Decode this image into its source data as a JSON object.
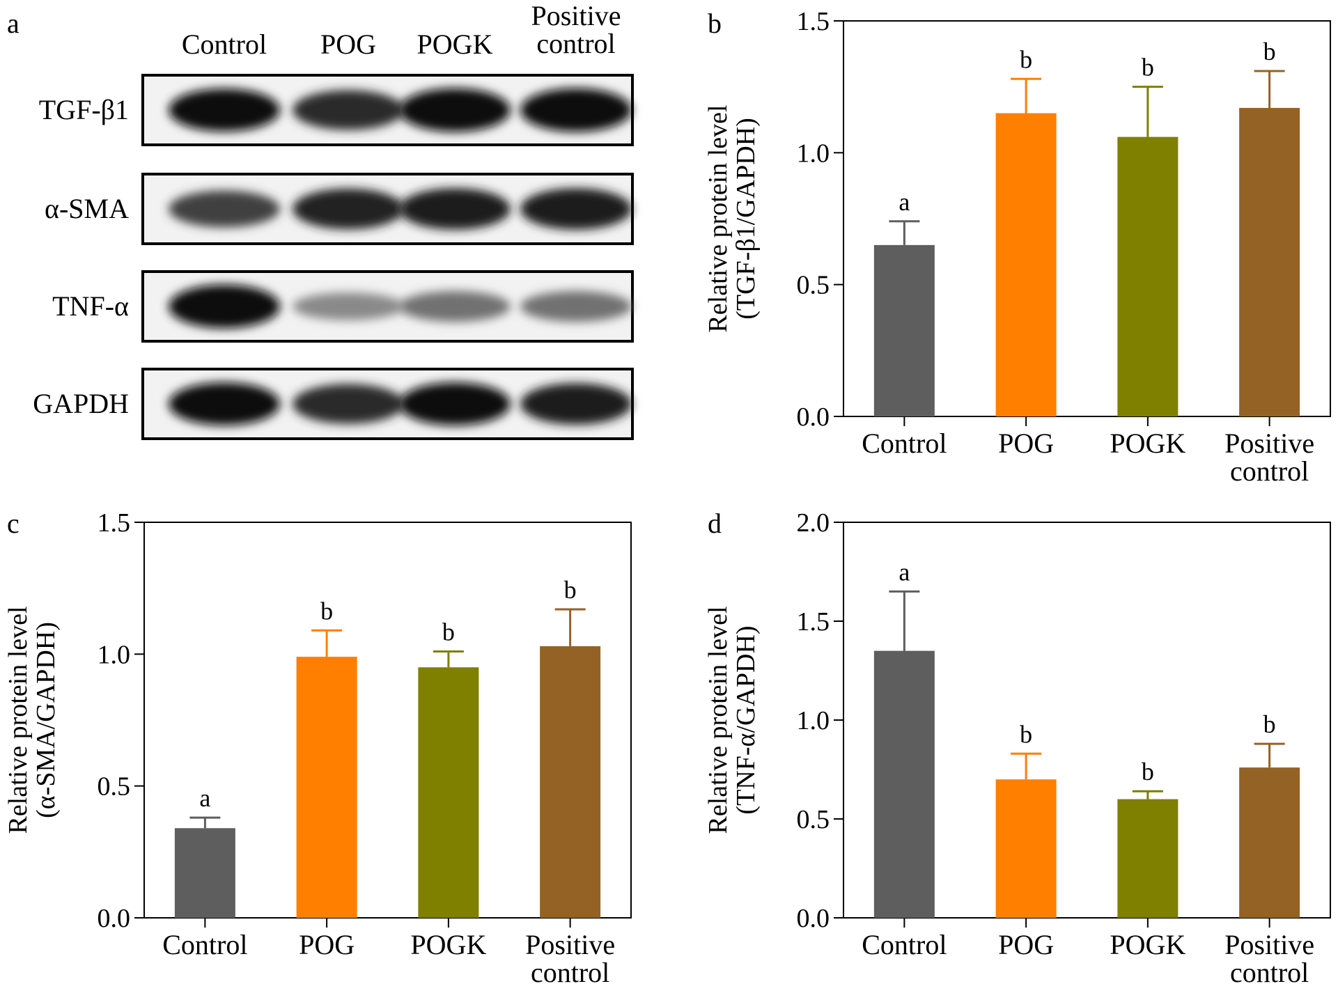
{
  "western_blot": {
    "panel_letter": "a",
    "lane_labels": [
      "Control",
      "POG",
      "POGK",
      "Positive control"
    ],
    "bands": [
      {
        "label": "TGF-β1",
        "intensity": [
          0.95,
          0.85,
          0.97,
          0.97
        ]
      },
      {
        "label": "α-SMA",
        "intensity": [
          0.75,
          0.88,
          0.9,
          0.9
        ]
      },
      {
        "label": "TNF-α",
        "intensity": [
          0.97,
          0.45,
          0.55,
          0.55
        ]
      },
      {
        "label": "GAPDH",
        "intensity": [
          0.95,
          0.85,
          0.95,
          0.9
        ]
      }
    ]
  },
  "colors": {
    "Control": "#5e5e5e",
    "POG": "#ff7f00",
    "POGK": "#7f7f00",
    "Positive control": "#946225"
  },
  "chart_data": [
    {
      "panel": "b",
      "type": "bar",
      "categories": [
        "Control",
        "POG",
        "POGK",
        "Positive control"
      ],
      "values": [
        0.65,
        1.15,
        1.06,
        1.17
      ],
      "errors": [
        0.09,
        0.13,
        0.19,
        0.14
      ],
      "significance": [
        "a",
        "b",
        "b",
        "b"
      ],
      "ylabel_lines": [
        "Relative protein level",
        "(TGF-β1/GAPDH)"
      ],
      "ylim": [
        0,
        1.5
      ],
      "yticks": [
        "0.0",
        "0.5",
        "1.0",
        "1.5"
      ]
    },
    {
      "panel": "c",
      "type": "bar",
      "categories": [
        "Control",
        "POG",
        "POGK",
        "Positive control"
      ],
      "values": [
        0.34,
        0.99,
        0.95,
        1.03
      ],
      "errors": [
        0.04,
        0.1,
        0.06,
        0.14
      ],
      "significance": [
        "a",
        "b",
        "b",
        "b"
      ],
      "ylabel_lines": [
        "Relative protein level",
        "(α-SMA/GAPDH)"
      ],
      "ylim": [
        0,
        1.5
      ],
      "yticks": [
        "0.0",
        "0.5",
        "1.0",
        "1.5"
      ]
    },
    {
      "panel": "d",
      "type": "bar",
      "categories": [
        "Control",
        "POG",
        "POGK",
        "Positive control"
      ],
      "values": [
        1.35,
        0.7,
        0.6,
        0.76
      ],
      "errors": [
        0.3,
        0.13,
        0.04,
        0.12
      ],
      "significance": [
        "a",
        "b",
        "b",
        "b"
      ],
      "ylabel_lines": [
        "Relative protein level",
        "(TNF-α/GAPDH)"
      ],
      "ylim": [
        0,
        2.0
      ],
      "yticks": [
        "0.0",
        "0.5",
        "1.0",
        "1.5",
        "2.0"
      ]
    }
  ]
}
